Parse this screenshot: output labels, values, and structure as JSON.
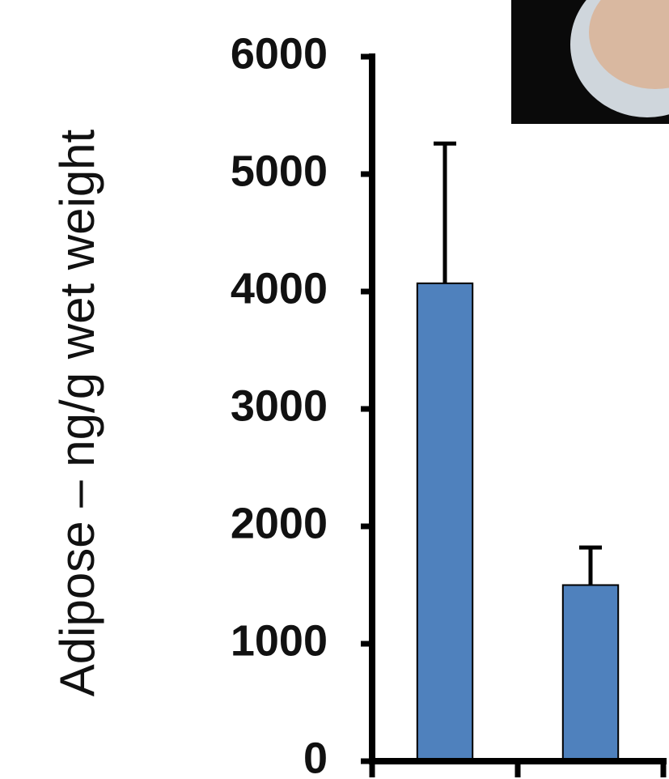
{
  "chart_data": {
    "type": "bar",
    "y_label": "Adipose – ng/g  wet weight",
    "categories": [
      null,
      null
    ],
    "values": [
      4070,
      1500
    ],
    "errors": [
      1190,
      320
    ],
    "color": "#4f81bd",
    "ylim": [
      0,
      6000
    ],
    "yticks": [
      0,
      1000,
      2000,
      3000,
      4000,
      5000,
      6000
    ],
    "grid": false
  }
}
